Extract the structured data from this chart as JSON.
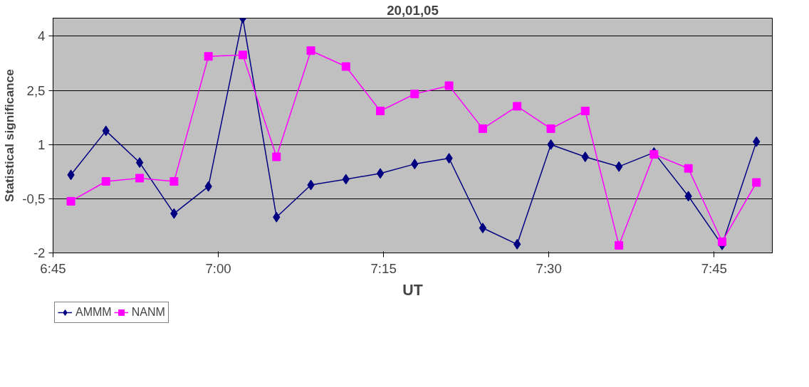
{
  "chart_data": {
    "type": "line",
    "title": "20,01,05",
    "xlabel": "UT",
    "ylabel": "Statistical significance",
    "xlim": [
      6.75,
      7.838
    ],
    "xticks": [
      {
        "value": 6.75,
        "label": "6:45"
      },
      {
        "value": 7.0,
        "label": "7:00"
      },
      {
        "value": 7.25,
        "label": "7:15"
      },
      {
        "value": 7.5,
        "label": "7:30"
      },
      {
        "value": 7.75,
        "label": "7:45"
      }
    ],
    "ylim": [
      -2,
      4.5
    ],
    "yticks": [
      {
        "value": 4,
        "label": "4"
      },
      {
        "value": 2.5,
        "label": "2,5"
      },
      {
        "value": 1,
        "label": "1"
      },
      {
        "value": -0.5,
        "label": "-0,5"
      },
      {
        "value": -2,
        "label": "-2"
      }
    ],
    "x": [
      6.777,
      6.83,
      6.881,
      6.933,
      6.985,
      7.037,
      7.088,
      7.14,
      7.193,
      7.245,
      7.297,
      7.349,
      7.4,
      7.452,
      7.503,
      7.555,
      7.606,
      7.659,
      7.711,
      7.762,
      7.814
    ],
    "series": [
      {
        "name": "AMMM",
        "color": "#000080",
        "marker": "diamond",
        "values": [
          0.16,
          1.38,
          0.5,
          -0.91,
          -0.16,
          4.5,
          -1.01,
          -0.12,
          0.04,
          0.2,
          0.46,
          0.62,
          -1.31,
          -1.76,
          1.0,
          0.66,
          0.39,
          0.78,
          -0.43,
          -1.78,
          1.08
        ]
      },
      {
        "name": "NANM",
        "color": "#ff00ff",
        "marker": "square",
        "values": [
          -0.57,
          -0.02,
          0.07,
          -0.02,
          3.44,
          3.48,
          0.66,
          3.6,
          3.16,
          1.93,
          2.4,
          2.63,
          1.44,
          2.06,
          1.44,
          1.93,
          -1.79,
          0.73,
          0.34,
          -1.69,
          -0.05
        ]
      }
    ],
    "grid": "y",
    "legend": "bottom left",
    "line_style": "solid"
  }
}
